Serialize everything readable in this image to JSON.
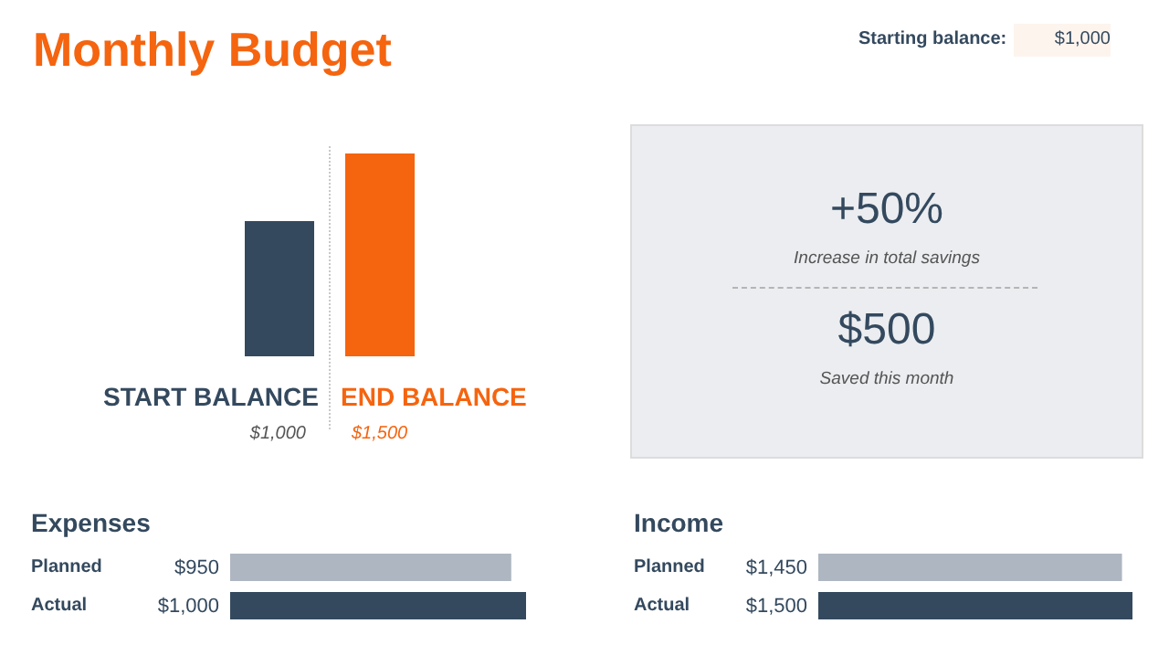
{
  "chart_data": [
    {
      "type": "bar",
      "title": "Monthly Budget",
      "annotations": [
        "Starting balance:",
        "$1,000"
      ],
      "categories": [
        "START BALANCE",
        "END BALANCE"
      ],
      "values": [
        1000,
        1500
      ],
      "colors": [
        "#34495e",
        "#f5640f"
      ],
      "value_labels": [
        "$1,000",
        "$1,500"
      ]
    },
    {
      "type": "other",
      "annotations": [
        "+50%",
        "Increase in total savings",
        "$500",
        "Saved this month"
      ]
    },
    {
      "type": "bar",
      "orientation": "horizontal",
      "title": "Expenses",
      "categories": [
        "Planned",
        "Actual"
      ],
      "values": [
        950,
        1000
      ],
      "colors": [
        "#aeb6c1",
        "#34495e"
      ],
      "value_labels": [
        "$950",
        "$1,000"
      ]
    },
    {
      "type": "bar",
      "orientation": "horizontal",
      "title": "Income",
      "categories": [
        "Planned",
        "Actual"
      ],
      "values": [
        1450,
        1500
      ],
      "colors": [
        "#aeb6c1",
        "#34495e"
      ],
      "value_labels": [
        "$1,450",
        "$1,500"
      ]
    }
  ]
}
